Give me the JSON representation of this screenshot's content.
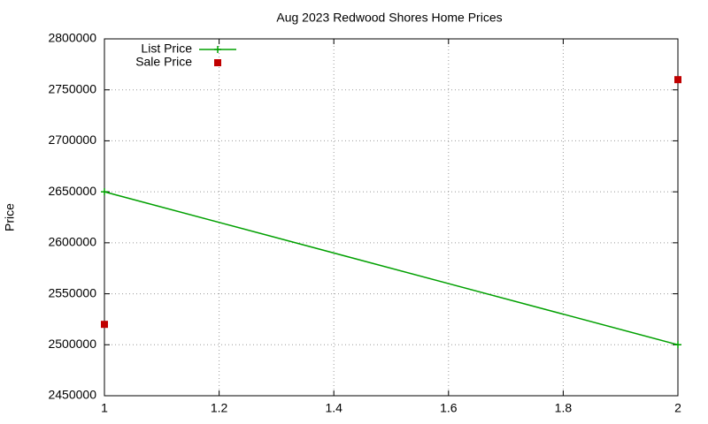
{
  "chart_data": {
    "type": "line",
    "title": "Aug 2023 Redwood Shores Home Prices",
    "y_label": "Price",
    "x": [
      1,
      2
    ],
    "series": [
      {
        "name": "List Price",
        "color": "#00a000",
        "values": [
          2650000,
          2500000
        ],
        "line": true,
        "marker": "plus"
      },
      {
        "name": "Sale Price",
        "color": "#c00000",
        "values": [
          2520000,
          2760000
        ],
        "line": false,
        "marker": "square"
      }
    ],
    "xlim": [
      1,
      2
    ],
    "xticks": [
      1,
      1.2,
      1.4,
      1.6,
      1.8,
      2
    ],
    "ylim": [
      2450000,
      2800000
    ],
    "yticks": [
      2450000,
      2500000,
      2550000,
      2600000,
      2650000,
      2700000,
      2750000,
      2800000
    ],
    "grid": true,
    "legend": "top-left"
  }
}
